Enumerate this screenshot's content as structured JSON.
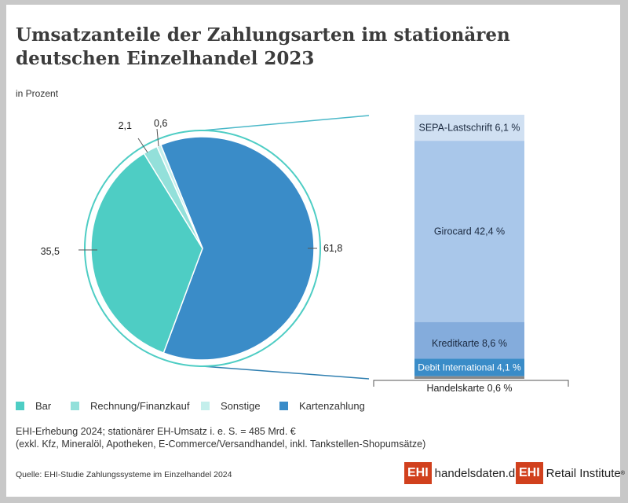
{
  "chart_data": {
    "type": "pie",
    "title": "Umsatzanteile der Zahlungsarten im stationären deutschen Einzelhandel 2023",
    "subtitle": "in Prozent",
    "slices": [
      {
        "name": "Kartenzahlung",
        "value": 61.8,
        "label": "61,8",
        "color": "#3a8cc8"
      },
      {
        "name": "Bar",
        "value": 35.5,
        "label": "35,5",
        "color": "#4ecdc4"
      },
      {
        "name": "Rechnung/Finanzkauf",
        "value": 2.1,
        "label": "2,1",
        "color": "#93e0da"
      },
      {
        "name": "Sonstige",
        "value": 0.6,
        "label": "0,6",
        "color": "#c4efec"
      }
    ],
    "breakdown_of": "Kartenzahlung",
    "breakdown": [
      {
        "name": "SEPA-Lastschrift",
        "value": 6.1,
        "label": "SEPA-Lastschrift 6,1 %",
        "color": "#d0e0f2",
        "text_color": "#1b2a40"
      },
      {
        "name": "Girocard",
        "value": 42.4,
        "label": "Girocard 42,4 %",
        "color": "#a9c7ea",
        "text_color": "#1b2a40"
      },
      {
        "name": "Kreditkarte",
        "value": 8.6,
        "label": "Kreditkarte 8,6 %",
        "color": "#84acdc",
        "text_color": "#1b2a40"
      },
      {
        "name": "Debit International",
        "value": 4.1,
        "label": "Debit International 4,1 %",
        "color": "#3a8cc8",
        "text_color": "#ffffff"
      },
      {
        "name": "Handelskarte",
        "value": 0.6,
        "label": "Handelskarte 0,6 %",
        "color": "#888888",
        "text_color": "#1b2a40"
      }
    ],
    "legend": [
      "Bar",
      "Rechnung/Finanzkauf",
      "Sonstige",
      "Kartenzahlung"
    ],
    "legend_placement": "bottom"
  },
  "notes": {
    "line1": "EHI-Erhebung 2024; stationärer EH-Umsatz i. e. S. = 485 Mrd. €",
    "line2": "(exkl. Kfz, Mineralöl, Apotheken, E-Commerce/Versandhandel, inkl. Tankstellen-Shopumsätze)",
    "source": "Quelle: EHI-Studie Zahlungssysteme im Einzelhandel 2024"
  },
  "logos": {
    "logo1_badge": "EHI",
    "logo1_text": "handelsdaten.de",
    "logo2_badge": "EHI",
    "logo2_text": "Retail Institute",
    "brand_color": "#d1401d"
  }
}
